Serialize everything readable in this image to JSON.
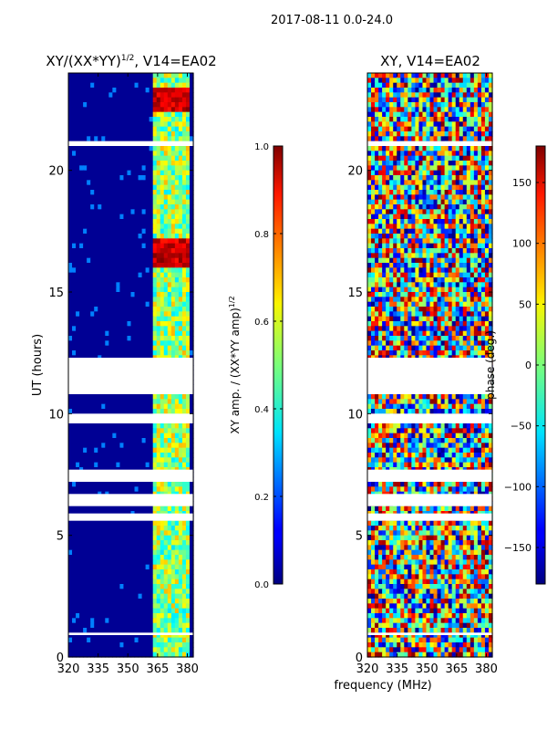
{
  "figure": {
    "suptitle": "2017-08-11 0.0-24.0",
    "xlabel": "frequency (MHz)"
  },
  "chart_data": [
    {
      "type": "heatmap",
      "title": "XY/(XX*YY)",
      "title_exponent": "1/2",
      "title_suffix": ", V14=EA02",
      "xlabel": "",
      "ylabel": "UT (hours)",
      "xlim": [
        320,
        383
      ],
      "ylim": [
        0,
        24
      ],
      "xticks": [
        "320",
        "335",
        "350",
        "365",
        "380"
      ],
      "xtick_values": [
        320,
        335,
        350,
        365,
        380
      ],
      "yticks": [
        "0",
        "5",
        "10",
        "15",
        "20"
      ],
      "ytick_values": [
        0,
        5,
        10,
        15,
        20
      ],
      "colorbar": {
        "label": "XY amp. / (XX*YY amp)",
        "label_exponent": "1/2",
        "range": [
          0.0,
          1.0
        ],
        "ticks": [
          "0.0",
          "0.2",
          "0.4",
          "0.6",
          "0.8",
          "1.0"
        ],
        "tick_values": [
          0.0,
          0.2,
          0.4,
          0.6,
          0.8,
          1.0
        ]
      },
      "data_gaps_hours": [
        [
          10.8,
          12.3
        ],
        [
          6.2,
          6.7
        ],
        [
          9.6,
          10.0
        ],
        [
          5.6,
          5.9
        ],
        [
          7.2,
          7.7
        ],
        [
          0.9,
          1.0
        ],
        [
          21.0,
          21.2
        ]
      ]
    },
    {
      "type": "heatmap",
      "title": "XY, V14=EA02",
      "xlabel": "",
      "ylabel": "",
      "xlim": [
        320,
        383
      ],
      "ylim": [
        0,
        24
      ],
      "xticks": [
        "320",
        "335",
        "350",
        "365",
        "380"
      ],
      "xtick_values": [
        320,
        335,
        350,
        365,
        380
      ],
      "yticks": [
        "0",
        "5",
        "10",
        "15",
        "20"
      ],
      "ytick_values": [
        0,
        5,
        10,
        15,
        20
      ],
      "colorbar": {
        "label": "phase (deg.)",
        "range": [
          -180,
          180
        ],
        "ticks": [
          "−150",
          "−100",
          "−50",
          "0",
          "50",
          "100",
          "150"
        ],
        "tick_values": [
          -150,
          -100,
          -50,
          0,
          50,
          100,
          150
        ]
      },
      "data_gaps_hours": [
        [
          10.8,
          12.3
        ],
        [
          6.2,
          6.7
        ],
        [
          9.6,
          10.0
        ],
        [
          5.6,
          5.9
        ],
        [
          7.2,
          7.7
        ],
        [
          0.9,
          1.0
        ],
        [
          21.0,
          21.2
        ]
      ]
    }
  ],
  "colors": {
    "axis": "#000000",
    "gap": "#ffffff"
  }
}
